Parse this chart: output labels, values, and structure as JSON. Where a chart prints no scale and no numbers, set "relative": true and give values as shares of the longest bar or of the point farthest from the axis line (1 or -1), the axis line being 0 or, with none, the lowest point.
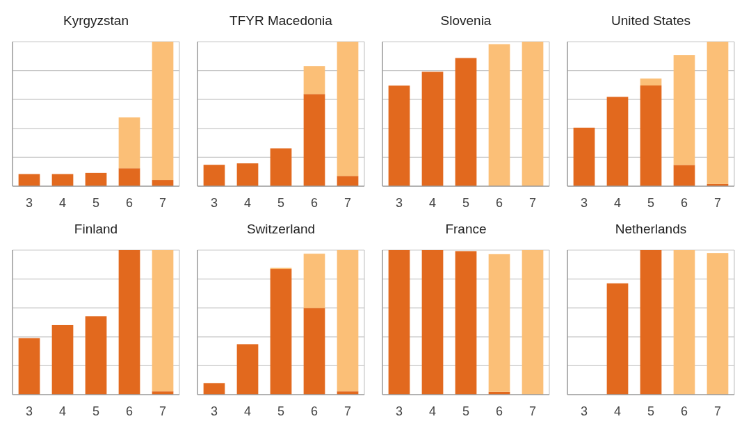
{
  "chart_data": [
    {
      "type": "bar",
      "title": "Kyrgyzstan",
      "categories": [
        "3",
        "4",
        "5",
        "6",
        "7"
      ],
      "stacked": true,
      "relative": true,
      "grid": true,
      "series": [
        {
          "color": "#e2691e",
          "values": [
            0.084,
            0.084,
            0.092,
            0.124,
            0.043
          ]
        },
        {
          "color": "#fbbf77",
          "values": [
            0,
            0,
            0,
            0.352,
            0.957
          ]
        }
      ]
    },
    {
      "type": "bar",
      "title": "TFYR Macedonia",
      "categories": [
        "3",
        "4",
        "5",
        "6",
        "7"
      ],
      "stacked": true,
      "relative": true,
      "grid": true,
      "series": [
        {
          "color": "#e2691e",
          "values": [
            0.148,
            0.158,
            0.262,
            0.638,
            0.071
          ]
        },
        {
          "color": "#fbbf77",
          "values": [
            0,
            0,
            0,
            0.193,
            0.929
          ]
        }
      ]
    },
    {
      "type": "bar",
      "title": "Slovenia",
      "categories": [
        "3",
        "4",
        "5",
        "6",
        "7"
      ],
      "stacked": true,
      "relative": true,
      "grid": true,
      "series": [
        {
          "color": "#e2691e",
          "values": [
            0.696,
            0.792,
            0.887,
            0,
            0
          ]
        },
        {
          "color": "#fbbf77",
          "values": [
            0,
            0,
            0,
            0.983,
            1
          ]
        }
      ]
    },
    {
      "type": "bar",
      "title": "United States",
      "categories": [
        "3",
        "4",
        "5",
        "6",
        "7"
      ],
      "stacked": true,
      "relative": true,
      "grid": true,
      "series": [
        {
          "color": "#e2691e",
          "values": [
            0.405,
            0.618,
            0.697,
            0.147,
            0.015
          ]
        },
        {
          "color": "#fbbf77",
          "values": [
            0,
            0,
            0.048,
            0.761,
            0.985
          ]
        }
      ]
    },
    {
      "type": "bar",
      "title": "Finland",
      "categories": [
        "3",
        "4",
        "5",
        "6",
        "7"
      ],
      "stacked": true,
      "relative": true,
      "grid": true,
      "series": [
        {
          "color": "#e2691e",
          "values": [
            0.391,
            0.481,
            0.542,
            1,
            0.023
          ]
        },
        {
          "color": "#fbbf77",
          "values": [
            0,
            0,
            0,
            0,
            0.977
          ]
        }
      ]
    },
    {
      "type": "bar",
      "title": "Switzerland",
      "categories": [
        "3",
        "4",
        "5",
        "6",
        "7"
      ],
      "stacked": true,
      "relative": true,
      "grid": true,
      "series": [
        {
          "color": "#e2691e",
          "values": [
            0.08,
            0.349,
            0.87,
            0.6,
            0.023
          ]
        },
        {
          "color": "#fbbf77",
          "values": [
            0,
            0,
            0.007,
            0.375,
            0.977
          ]
        }
      ]
    },
    {
      "type": "bar",
      "title": "France",
      "categories": [
        "3",
        "4",
        "5",
        "6",
        "7"
      ],
      "stacked": true,
      "relative": true,
      "grid": true,
      "series": [
        {
          "color": "#e2691e",
          "values": [
            1,
            1,
            0.993,
            0.02,
            0
          ]
        },
        {
          "color": "#fbbf77",
          "values": [
            0,
            0,
            0,
            0.952,
            1
          ]
        }
      ]
    },
    {
      "type": "bar",
      "title": "Netherlands",
      "categories": [
        "3",
        "4",
        "5",
        "6",
        "7"
      ],
      "stacked": true,
      "relative": true,
      "grid": true,
      "series": [
        {
          "color": "#e2691e",
          "values": [
            0,
            0.77,
            1,
            0,
            0
          ]
        },
        {
          "color": "#fbbf77",
          "values": [
            0,
            0,
            0,
            1,
            0.98
          ]
        }
      ]
    }
  ]
}
